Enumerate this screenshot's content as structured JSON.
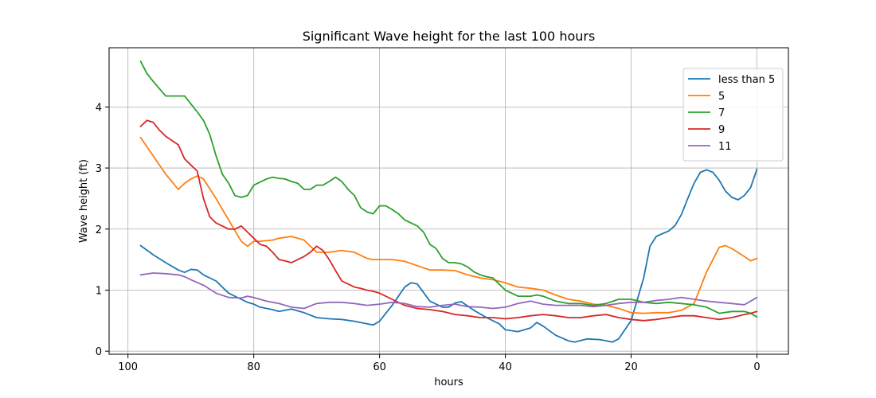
{
  "chart_data": {
    "type": "line",
    "title": "Significant Wave height for the last 100 hours",
    "xlabel": "hours",
    "ylabel": "Wave height (ft)",
    "xlim": [
      103,
      -5
    ],
    "ylim": [
      -0.05,
      4.97
    ],
    "x_reversed": true,
    "xticks": [
      100,
      80,
      60,
      40,
      20,
      0
    ],
    "yticks": [
      0,
      1,
      2,
      3,
      4
    ],
    "grid": true,
    "legend_position": "top-right",
    "series": [
      {
        "name": "less than 5",
        "color": "#1f77b4",
        "x": [
          98,
          96,
          94,
          92,
          91,
          90,
          89,
          88,
          86,
          84,
          82,
          81,
          80,
          79,
          77,
          76,
          74,
          72,
          70,
          68,
          66,
          64,
          62,
          61,
          60,
          58,
          56,
          55,
          54,
          52,
          50,
          49,
          48,
          47,
          45,
          43,
          41,
          40,
          38,
          36,
          35,
          34,
          32,
          30,
          29,
          27,
          25,
          24,
          23,
          22,
          20,
          18,
          17,
          16,
          14,
          13,
          12,
          11,
          10,
          9,
          8,
          7,
          6,
          5,
          4,
          3,
          2,
          1,
          0
        ],
        "values": [
          1.73,
          1.58,
          1.45,
          1.33,
          1.29,
          1.34,
          1.33,
          1.25,
          1.15,
          0.95,
          0.85,
          0.8,
          0.77,
          0.72,
          0.68,
          0.65,
          0.69,
          0.63,
          0.55,
          0.53,
          0.52,
          0.49,
          0.45,
          0.43,
          0.49,
          0.75,
          1.05,
          1.12,
          1.1,
          0.82,
          0.72,
          0.72,
          0.79,
          0.81,
          0.67,
          0.55,
          0.45,
          0.35,
          0.32,
          0.38,
          0.47,
          0.41,
          0.26,
          0.17,
          0.15,
          0.2,
          0.19,
          0.17,
          0.15,
          0.2,
          0.5,
          1.2,
          1.72,
          1.88,
          1.97,
          2.06,
          2.24,
          2.5,
          2.75,
          2.93,
          2.97,
          2.93,
          2.8,
          2.62,
          2.52,
          2.48,
          2.55,
          2.68,
          2.98
        ]
      },
      {
        "name": "5",
        "color": "#ff7f0e",
        "x": [
          98,
          96,
          94,
          92,
          91,
          90,
          89,
          88,
          86,
          84,
          82,
          81,
          80,
          79,
          77,
          76,
          74,
          72,
          70,
          68,
          66,
          64,
          62,
          61,
          60,
          58,
          56,
          54,
          52,
          50,
          48,
          46,
          44,
          42,
          40,
          38,
          36,
          34,
          32,
          30,
          28,
          26,
          24,
          22,
          20,
          18,
          16,
          14,
          12,
          10,
          8,
          6,
          5,
          4,
          2,
          1,
          0
        ],
        "values": [
          3.5,
          3.2,
          2.9,
          2.65,
          2.75,
          2.82,
          2.87,
          2.82,
          2.5,
          2.15,
          1.8,
          1.72,
          1.8,
          1.8,
          1.82,
          1.85,
          1.88,
          1.82,
          1.62,
          1.62,
          1.65,
          1.62,
          1.52,
          1.5,
          1.5,
          1.5,
          1.47,
          1.4,
          1.33,
          1.33,
          1.32,
          1.25,
          1.2,
          1.17,
          1.12,
          1.05,
          1.03,
          1.0,
          0.92,
          0.85,
          0.82,
          0.77,
          0.75,
          0.7,
          0.63,
          0.62,
          0.63,
          0.63,
          0.67,
          0.78,
          1.3,
          1.7,
          1.73,
          1.68,
          1.55,
          1.48,
          1.52
        ]
      },
      {
        "name": "7",
        "color": "#2ca02c",
        "x": [
          98,
          97,
          96,
          95,
          94,
          93,
          92,
          91,
          90,
          89,
          88,
          87,
          86,
          85,
          84,
          83,
          82,
          81,
          80,
          78,
          77,
          76,
          75,
          74,
          73,
          72,
          71,
          70,
          69,
          68,
          67,
          66,
          65,
          64,
          63,
          62,
          61,
          60,
          59,
          58,
          57,
          56,
          55,
          54,
          53,
          52,
          51,
          50,
          49,
          48,
          47,
          46,
          45,
          44,
          43,
          42,
          41,
          40,
          38,
          36,
          35,
          34,
          32,
          30,
          28,
          26,
          24,
          22,
          20,
          18,
          16,
          14,
          12,
          10,
          8,
          6,
          4,
          2,
          1,
          0
        ],
        "values": [
          4.75,
          4.55,
          4.42,
          4.3,
          4.18,
          4.18,
          4.18,
          4.18,
          4.05,
          3.92,
          3.78,
          3.55,
          3.2,
          2.9,
          2.75,
          2.55,
          2.52,
          2.55,
          2.72,
          2.82,
          2.85,
          2.83,
          2.82,
          2.78,
          2.75,
          2.65,
          2.65,
          2.72,
          2.72,
          2.78,
          2.85,
          2.78,
          2.65,
          2.55,
          2.35,
          2.28,
          2.25,
          2.38,
          2.38,
          2.32,
          2.25,
          2.15,
          2.1,
          2.05,
          1.95,
          1.75,
          1.68,
          1.52,
          1.45,
          1.45,
          1.43,
          1.38,
          1.3,
          1.25,
          1.22,
          1.2,
          1.1,
          1.0,
          0.9,
          0.9,
          0.92,
          0.9,
          0.82,
          0.78,
          0.78,
          0.75,
          0.78,
          0.85,
          0.85,
          0.8,
          0.78,
          0.8,
          0.78,
          0.76,
          0.72,
          0.62,
          0.65,
          0.65,
          0.62,
          0.56
        ]
      },
      {
        "name": "9",
        "color": "#d62728",
        "x": [
          98,
          97,
          96,
          95,
          94,
          93,
          92,
          91,
          90,
          89,
          88,
          87,
          86,
          85,
          84,
          83,
          82,
          81,
          80,
          79,
          78,
          77,
          76,
          75,
          74,
          73,
          72,
          71,
          70,
          69,
          68,
          67,
          66,
          65,
          64,
          63,
          62,
          61,
          60,
          58,
          56,
          54,
          52,
          50,
          48,
          46,
          44,
          42,
          40,
          38,
          36,
          34,
          32,
          30,
          28,
          26,
          24,
          22,
          20,
          18,
          16,
          14,
          12,
          10,
          8,
          6,
          4,
          2,
          1,
          0
        ],
        "values": [
          3.68,
          3.78,
          3.75,
          3.62,
          3.52,
          3.45,
          3.38,
          3.15,
          3.05,
          2.95,
          2.5,
          2.2,
          2.1,
          2.05,
          2.0,
          2.0,
          2.05,
          1.95,
          1.85,
          1.75,
          1.72,
          1.62,
          1.5,
          1.48,
          1.45,
          1.5,
          1.55,
          1.62,
          1.72,
          1.65,
          1.5,
          1.32,
          1.15,
          1.1,
          1.05,
          1.03,
          1.0,
          0.98,
          0.95,
          0.85,
          0.75,
          0.7,
          0.68,
          0.65,
          0.6,
          0.58,
          0.55,
          0.55,
          0.53,
          0.55,
          0.58,
          0.6,
          0.58,
          0.55,
          0.55,
          0.58,
          0.6,
          0.55,
          0.52,
          0.5,
          0.52,
          0.55,
          0.58,
          0.58,
          0.55,
          0.52,
          0.55,
          0.6,
          0.62,
          0.65
        ]
      },
      {
        "name": "11",
        "color": "#9467bd",
        "x": [
          98,
          96,
          94,
          92,
          91,
          90,
          88,
          86,
          84,
          82,
          81,
          80,
          78,
          76,
          74,
          72,
          70,
          68,
          66,
          64,
          62,
          60,
          58,
          56,
          54,
          52,
          50,
          48,
          46,
          44,
          42,
          40,
          38,
          36,
          34,
          32,
          30,
          28,
          26,
          24,
          22,
          20,
          18,
          16,
          14,
          12,
          10,
          8,
          6,
          4,
          2,
          0
        ],
        "values": [
          1.25,
          1.28,
          1.27,
          1.25,
          1.22,
          1.17,
          1.08,
          0.95,
          0.88,
          0.87,
          0.9,
          0.88,
          0.82,
          0.78,
          0.72,
          0.7,
          0.78,
          0.8,
          0.8,
          0.78,
          0.75,
          0.77,
          0.8,
          0.78,
          0.73,
          0.72,
          0.75,
          0.77,
          0.73,
          0.72,
          0.7,
          0.72,
          0.78,
          0.82,
          0.77,
          0.75,
          0.75,
          0.75,
          0.73,
          0.75,
          0.78,
          0.8,
          0.8,
          0.83,
          0.85,
          0.88,
          0.85,
          0.82,
          0.8,
          0.78,
          0.76,
          0.88
        ]
      }
    ]
  }
}
